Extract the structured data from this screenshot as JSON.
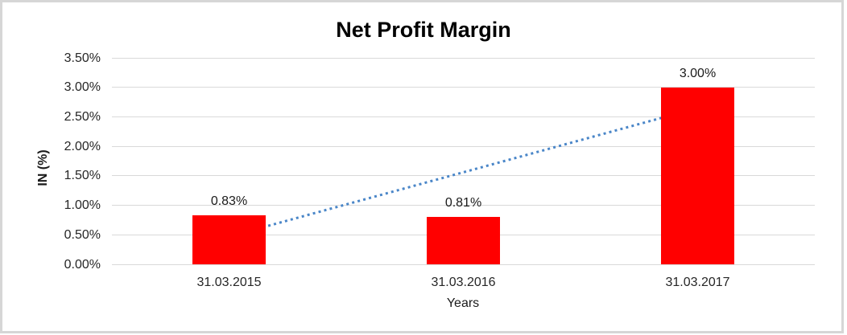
{
  "frame": {
    "border_color": "#d6d6d6",
    "background_color": "#ffffff"
  },
  "chart_data": {
    "type": "bar",
    "title": "Net Profit Margin",
    "xlabel": "Years",
    "ylabel": "IN (%)",
    "categories": [
      "31.03.2015",
      "31.03.2016",
      "31.03.2017"
    ],
    "values": [
      0.83,
      0.81,
      3.0
    ],
    "data_labels": [
      "0.83%",
      "0.81%",
      "3.00%"
    ],
    "yticks_labels": [
      "0.00%",
      "0.50%",
      "1.00%",
      "1.50%",
      "2.00%",
      "2.50%",
      "3.00%",
      "3.50%"
    ],
    "yticks_values": [
      0,
      0.5,
      1.0,
      1.5,
      2.0,
      2.5,
      3.0,
      3.5
    ],
    "ylim": [
      0,
      3.5
    ],
    "grid": true,
    "legend": "none",
    "bar_color": "#ff0000",
    "gridline_color": "#d9d9d9",
    "text_color": "#262626",
    "trendline": {
      "type": "linear",
      "style": "dotted",
      "color": "#4a86c8",
      "start_value": 0.47,
      "end_value": 2.65
    }
  }
}
